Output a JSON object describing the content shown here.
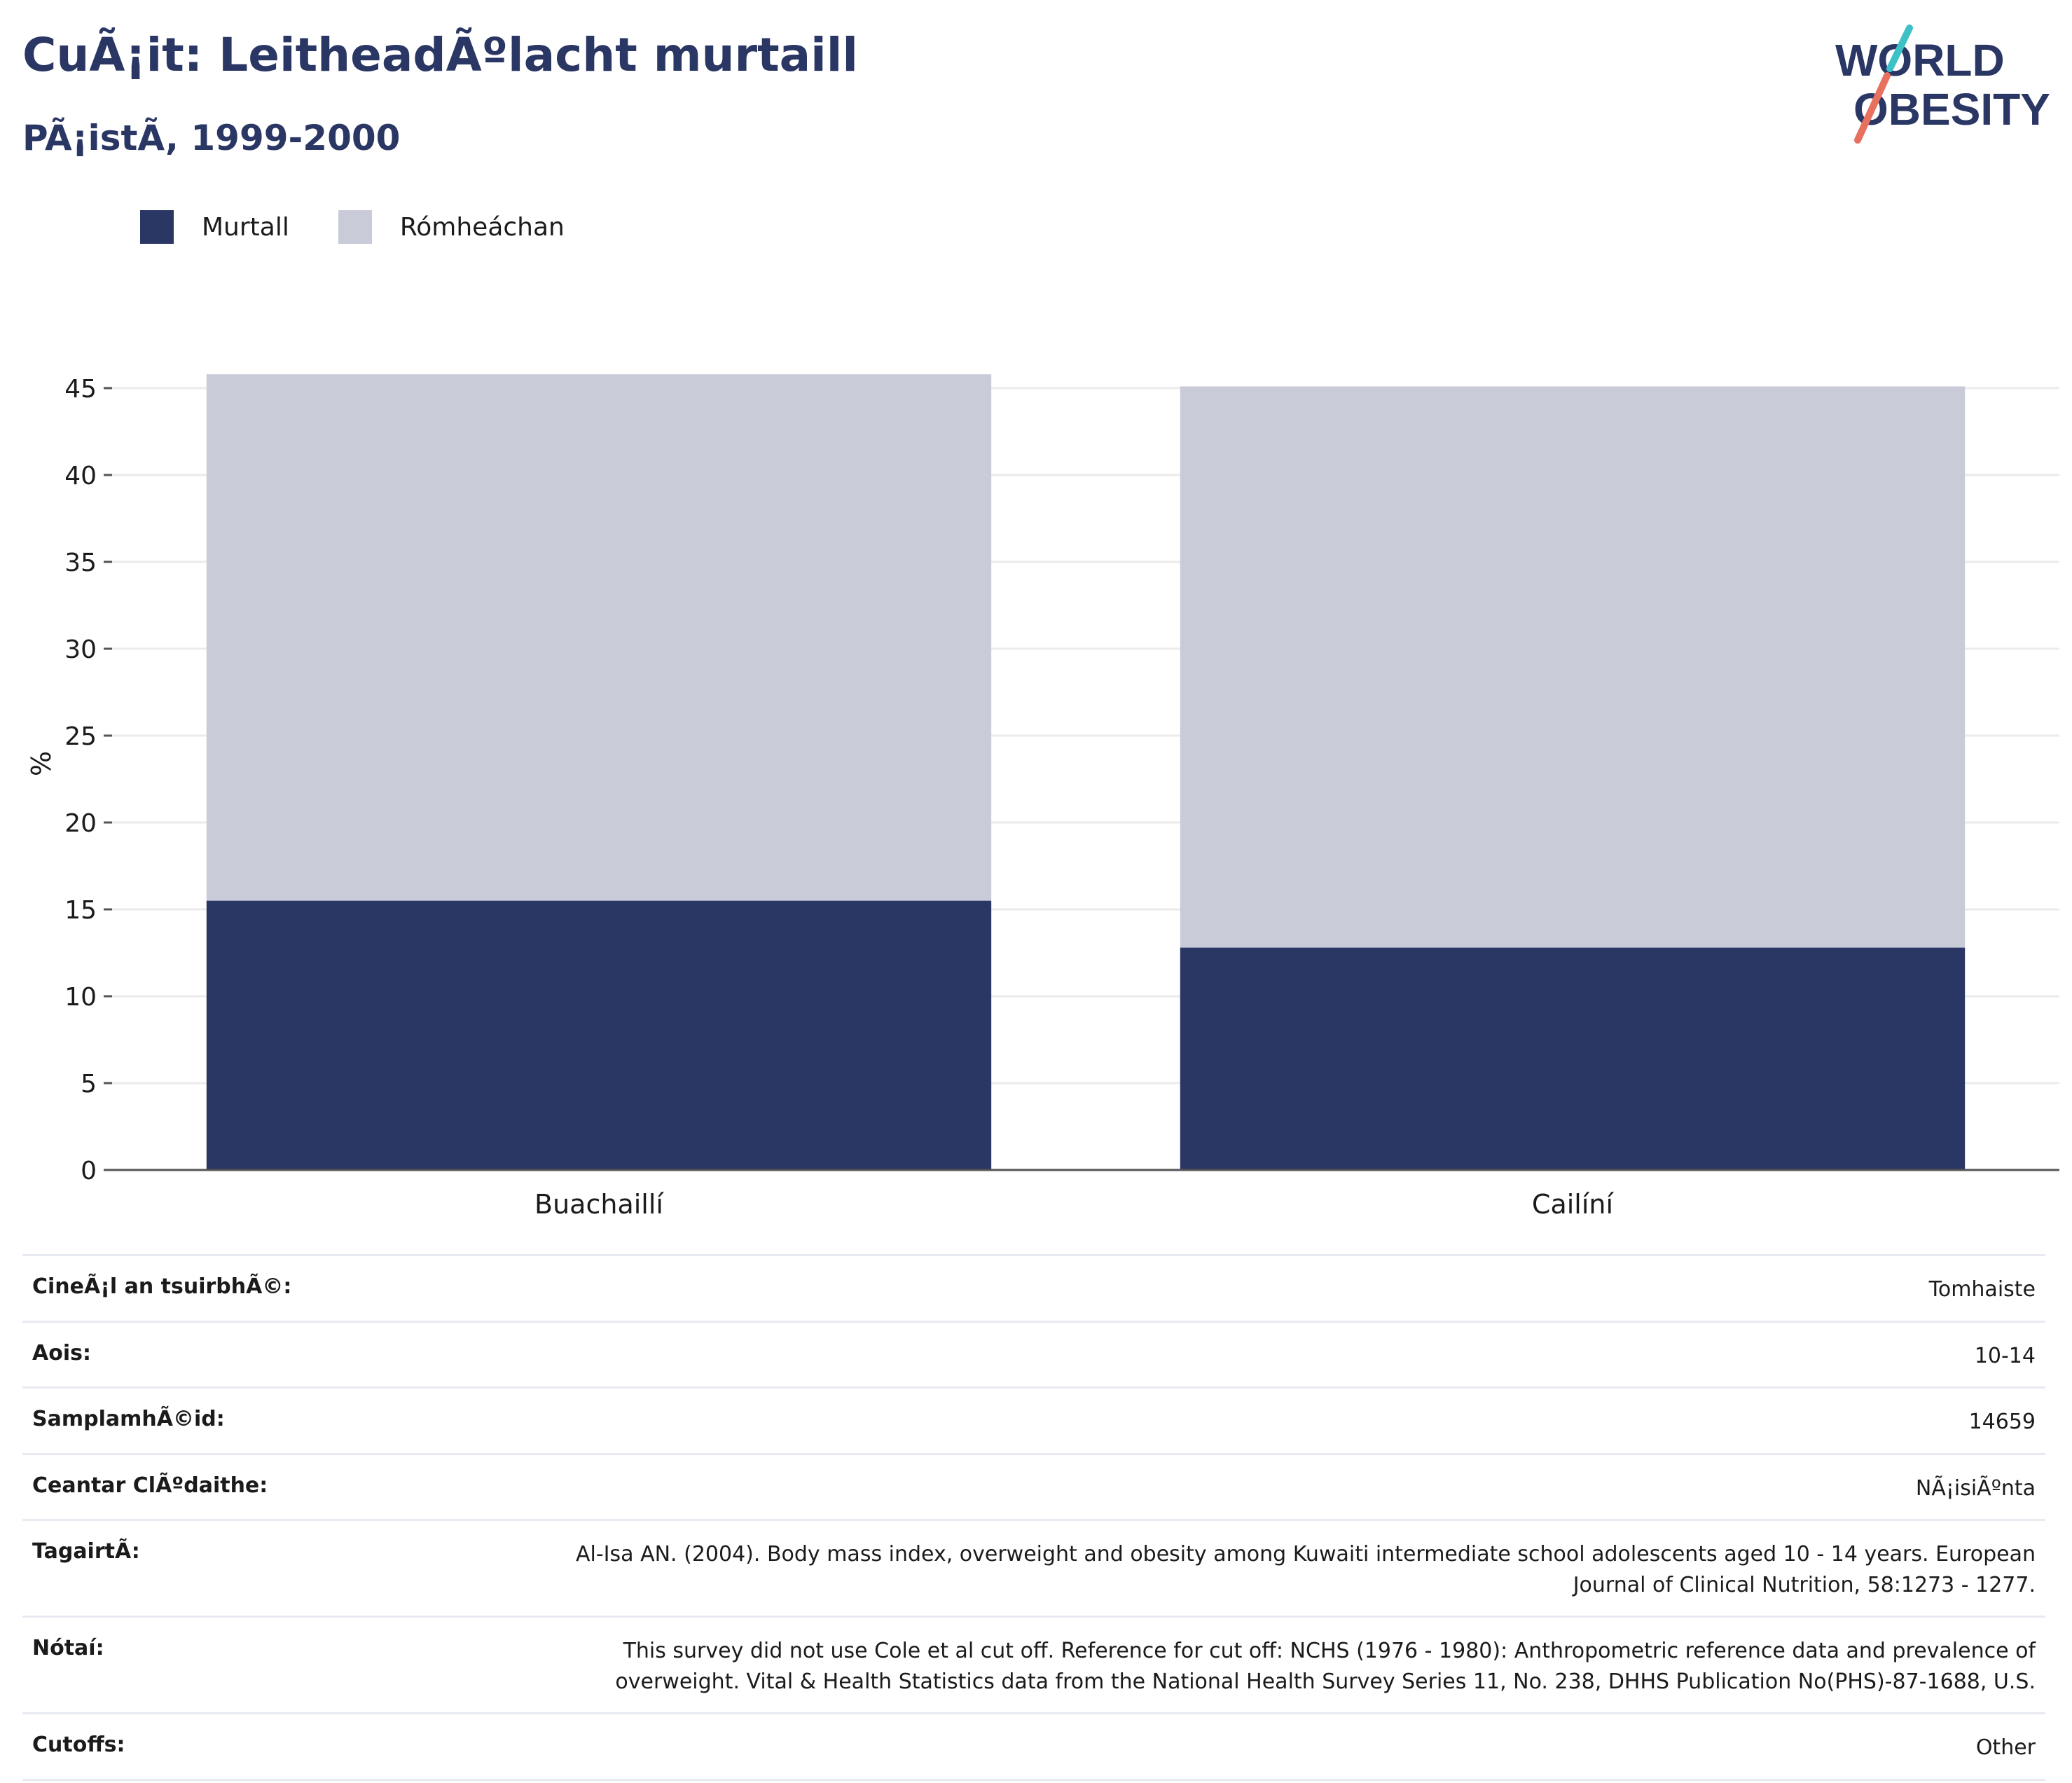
{
  "header": {
    "title": "CuÃ¡it: LeitheadÃºlacht murtaill",
    "subtitle": "PÃ¡istÃ, 1999-2000"
  },
  "logo": {
    "line1": "WORLD",
    "line2": "OBESITY"
  },
  "colors": {
    "title": "#2a3663",
    "obese": "#2a3663",
    "overweight": "#c9ccd8",
    "logo_teal": "#3ec1c6",
    "logo_coral": "#e8705f"
  },
  "chart_data": {
    "type": "bar",
    "stacked": true,
    "categories": [
      "Buachaillí",
      "Cailíní"
    ],
    "series": [
      {
        "name": "Murtall",
        "values": [
          15.5,
          12.8
        ],
        "color": "#2a3663"
      },
      {
        "name": "Rómheáchan",
        "values": [
          30.3,
          32.3
        ],
        "color": "#c9ccd8"
      }
    ],
    "ylabel": "%",
    "ylim": [
      0,
      45
    ],
    "yticks": [
      0,
      5,
      10,
      15,
      20,
      25,
      30,
      35,
      40,
      45
    ],
    "grid": true,
    "legend_position": "top-left"
  },
  "meta": [
    {
      "label": "CineÃ¡l an tsuirbhÃ©:",
      "value": "Tomhaiste"
    },
    {
      "label": "Aois:",
      "value": "10-14"
    },
    {
      "label": "SamplamhÃ©id:",
      "value": "14659"
    },
    {
      "label": "Ceantar ClÃºdaithe:",
      "value": "NÃ¡isiÃºnta"
    },
    {
      "label": "TagairtÃ:",
      "value": "Al-Isa AN. (2004). Body mass index, overweight and obesity among Kuwaiti intermediate school adolescents aged 10 - 14 years. European Journal of Clinical Nutrition, 58:1273 - 1277."
    },
    {
      "label": "Nótaí:",
      "value": "This survey did not use Cole et al cut off. Reference for cut off: NCHS (1976 - 1980): Anthropometric reference data and prevalence of overweight. Vital & Health Statistics data from the National Health Survey Series 11, No. 238, DHHS Publication No(PHS)-87-1688, U.S."
    },
    {
      "label": "Cutoffs:",
      "value": "Other"
    }
  ]
}
